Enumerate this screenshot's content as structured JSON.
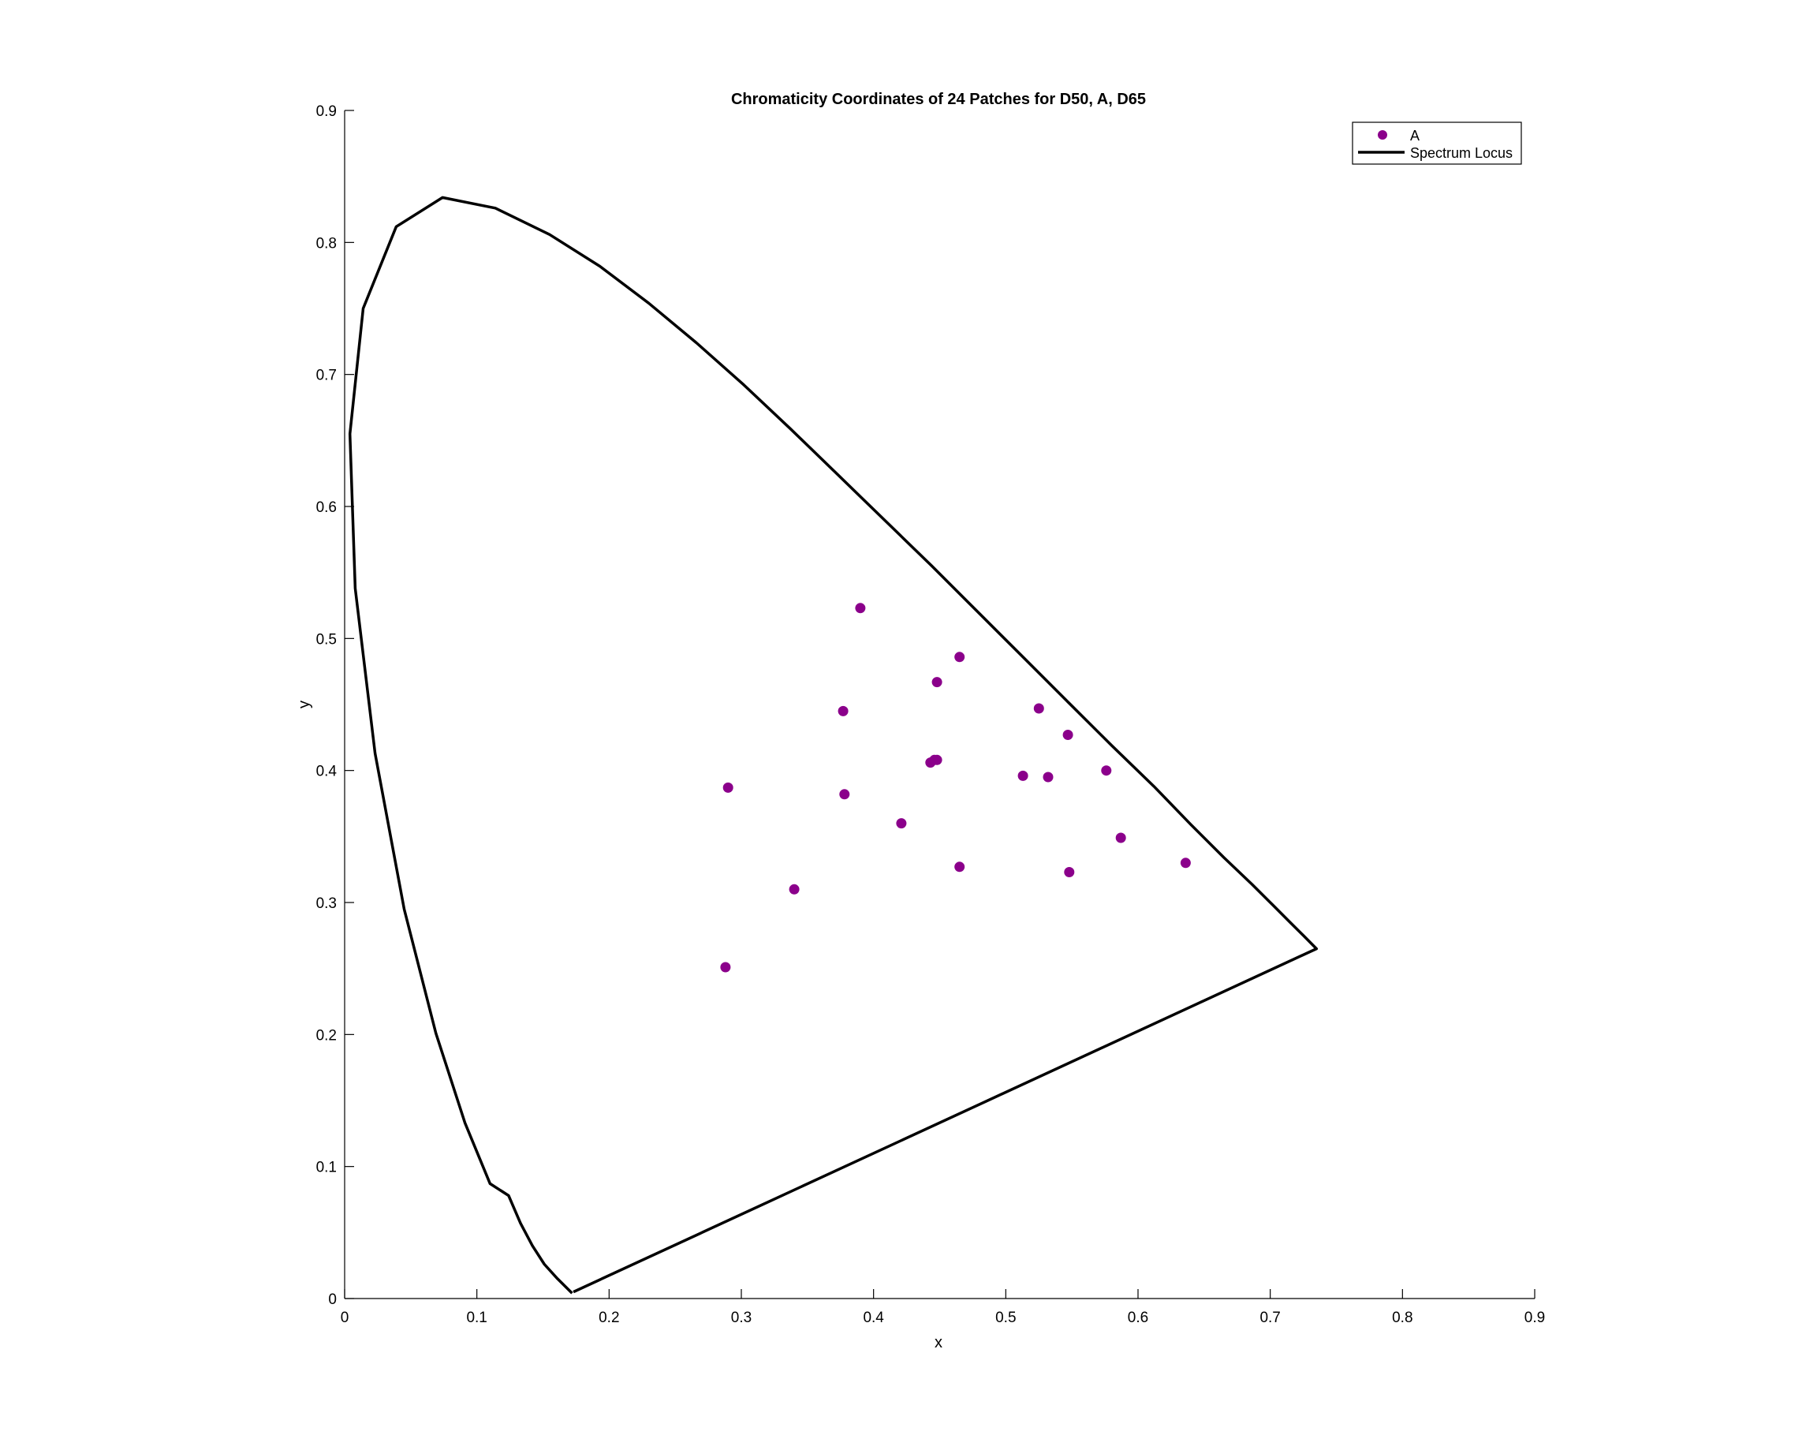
{
  "chart_data": {
    "type": "scatter",
    "title": "Chromaticity Coordinates of 24 Patches for D50, A, D65",
    "xlabel": "x",
    "ylabel": "y",
    "xlim": [
      0,
      0.9
    ],
    "ylim": [
      0,
      0.9
    ],
    "xticks": [
      "0",
      "0.1",
      "0.2",
      "0.3",
      "0.4",
      "0.5",
      "0.6",
      "0.7",
      "0.8",
      "0.9"
    ],
    "yticks": [
      "0",
      "0.1",
      "0.2",
      "0.3",
      "0.4",
      "0.5",
      "0.6",
      "0.7",
      "0.8",
      "0.9"
    ],
    "grid": false,
    "legend_position": "top-right",
    "series": [
      {
        "name": "A",
        "kind": "scatter",
        "color": "#8b008b",
        "points": [
          [
            0.39,
            0.523
          ],
          [
            0.465,
            0.486
          ],
          [
            0.448,
            0.467
          ],
          [
            0.377,
            0.445
          ],
          [
            0.525,
            0.447
          ],
          [
            0.547,
            0.427
          ],
          [
            0.443,
            0.406
          ],
          [
            0.446,
            0.408
          ],
          [
            0.448,
            0.408
          ],
          [
            0.29,
            0.387
          ],
          [
            0.513,
            0.396
          ],
          [
            0.532,
            0.395
          ],
          [
            0.576,
            0.4
          ],
          [
            0.378,
            0.382
          ],
          [
            0.421,
            0.36
          ],
          [
            0.587,
            0.349
          ],
          [
            0.34,
            0.31
          ],
          [
            0.465,
            0.327
          ],
          [
            0.548,
            0.323
          ],
          [
            0.636,
            0.33
          ],
          [
            0.288,
            0.251
          ]
        ]
      },
      {
        "name": "Spectrum Locus",
        "kind": "line",
        "color": "#000000",
        "points": [
          [
            0.172,
            0.004
          ],
          [
            0.161,
            0.015
          ],
          [
            0.151,
            0.026
          ],
          [
            0.142,
            0.04
          ],
          [
            0.133,
            0.057
          ],
          [
            0.124,
            0.078
          ],
          [
            0.11,
            0.087
          ],
          [
            0.091,
            0.133
          ],
          [
            0.069,
            0.201
          ],
          [
            0.045,
            0.295
          ],
          [
            0.023,
            0.413
          ],
          [
            0.008,
            0.538
          ],
          [
            0.004,
            0.655
          ],
          [
            0.014,
            0.75
          ],
          [
            0.039,
            0.812
          ],
          [
            0.074,
            0.834
          ],
          [
            0.114,
            0.826
          ],
          [
            0.155,
            0.806
          ],
          [
            0.193,
            0.782
          ],
          [
            0.23,
            0.754
          ],
          [
            0.266,
            0.724
          ],
          [
            0.302,
            0.692
          ],
          [
            0.337,
            0.659
          ],
          [
            0.373,
            0.624
          ],
          [
            0.409,
            0.589
          ],
          [
            0.444,
            0.555
          ],
          [
            0.479,
            0.52
          ],
          [
            0.513,
            0.486
          ],
          [
            0.547,
            0.452
          ],
          [
            0.58,
            0.419
          ],
          [
            0.612,
            0.388
          ],
          [
            0.64,
            0.359
          ],
          [
            0.665,
            0.334
          ],
          [
            0.686,
            0.314
          ],
          [
            0.702,
            0.298
          ],
          [
            0.715,
            0.285
          ],
          [
            0.725,
            0.275
          ],
          [
            0.735,
            0.265
          ],
          [
            0.173,
            0.005
          ]
        ]
      }
    ]
  }
}
